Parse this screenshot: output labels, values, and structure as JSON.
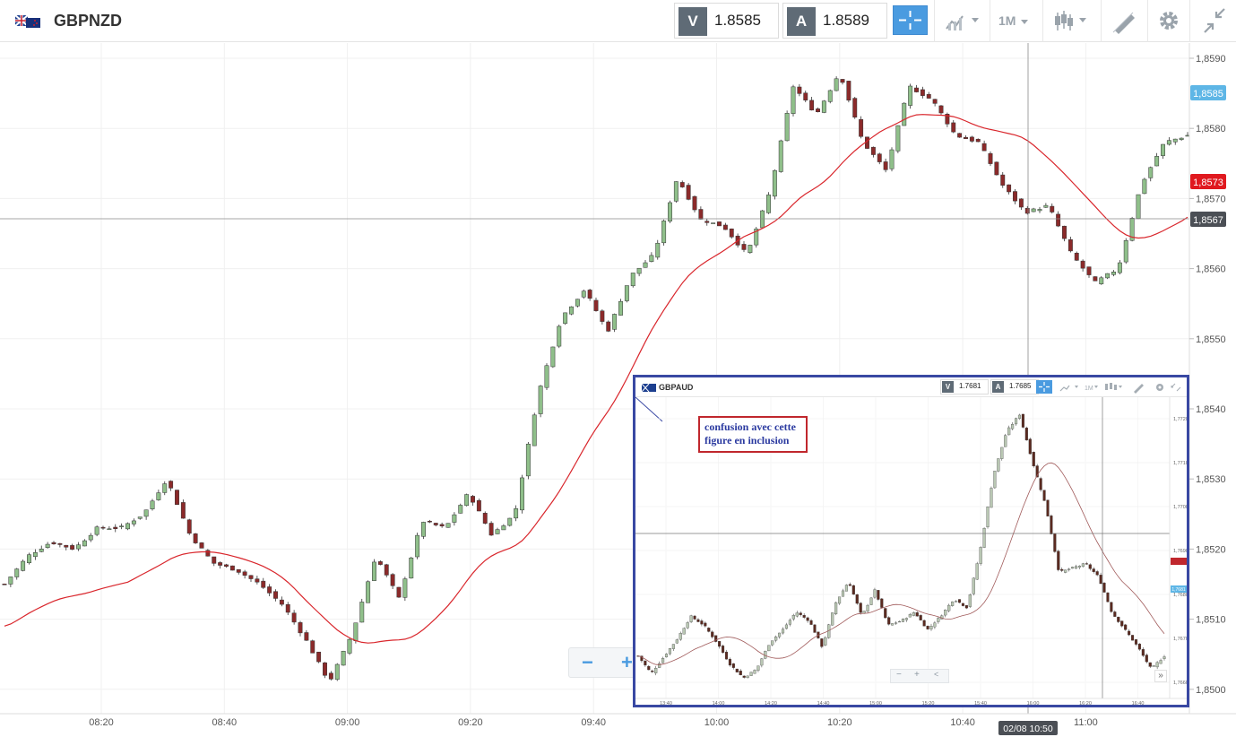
{
  "header": {
    "symbol": "GBPNZD",
    "flag_icon": "gb-nz-flag-icon",
    "bid_tag": "V",
    "bid_value": "1.8585",
    "ask_tag": "A",
    "ask_value": "1.8589",
    "timeframe": "1M",
    "accent": "#4a9be0"
  },
  "chart": {
    "y_ticks": [
      "1,8590",
      "1,8580",
      "1,8570",
      "1,8560",
      "1,8550",
      "1,8540",
      "1,8530",
      "1,8520",
      "1,8510",
      "1,8500"
    ],
    "x_ticks": [
      "08:20",
      "08:40",
      "09:00",
      "09:20",
      "09:40",
      "10:00",
      "10:20",
      "10:40",
      "11:00"
    ],
    "badge_last": "1,8585",
    "badge_ma": "1,8573",
    "badge_crosshair": "1,8567",
    "crosshair_time": "02/08 10:50",
    "up_color": "#8fbf8a",
    "down_color": "#8b2a2a",
    "ma_color": "#d9262c"
  },
  "zoom": {
    "minus": "−",
    "plus": "+"
  },
  "inset": {
    "symbol": "GBPAUD",
    "bid_tag": "V",
    "bid_value": "1.7681",
    "ask_tag": "A",
    "ask_value": "1.7685",
    "timeframe": "1M",
    "note_line1": "confusion avec cette",
    "note_line2": "figure en inclusion",
    "y_ticks": [
      "1,7720",
      "1,7710",
      "1,7700",
      "1,7690",
      "1,7680",
      "1,7670",
      "1,7660"
    ],
    "x_ticks": [
      "13:40",
      "14:00",
      "14:20",
      "14:40",
      "15:00",
      "15:20",
      "15:40",
      "16:00",
      "16:20",
      "16:40"
    ],
    "badge_last": "1,7681",
    "zoom_minus": "−",
    "zoom_plus": "+",
    "share_icon": "share-icon",
    "more": "»",
    "border_color": "#3948a3",
    "note_border": "#c0272d",
    "note_text_color": "#2b3aa0"
  }
}
